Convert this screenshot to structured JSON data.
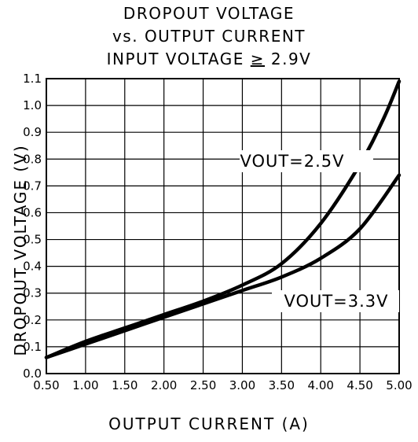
{
  "title_lines": [
    "DROPOUT VOLTAGE",
    "vs. OUTPUT CURRENT",
    "INPUT VOLTAGE ≥ 2.9V"
  ],
  "title_parts": {
    "line3_prefix": "INPUT VOLTAGE ",
    "line3_symbol": "≥",
    "line3_suffix": " 2.9V"
  },
  "chart_data": {
    "type": "line",
    "title": "DROPOUT VOLTAGE vs. OUTPUT CURRENT INPUT VOLTAGE ≥ 2.9V",
    "xlabel": "OUTPUT CURRENT (A)",
    "ylabel": "DROPOUT VOLTAGE (V)",
    "xlim": [
      0.5,
      5.0
    ],
    "ylim": [
      0.0,
      1.1
    ],
    "grid": true,
    "x_ticks": [
      "0.50",
      "1.00",
      "1.50",
      "2.00",
      "2.50",
      "3.00",
      "3.50",
      "4.00",
      "4.50",
      "5.00"
    ],
    "y_ticks": [
      "0.0",
      "0.1",
      "0.2",
      "0.3",
      "0.4",
      "0.5",
      "0.6",
      "0.7",
      "0.8",
      "0.9",
      "1.0",
      "1.1"
    ],
    "series": [
      {
        "name": "VOUT=2.5V",
        "x": [
          0.5,
          1.0,
          1.5,
          2.0,
          2.5,
          3.0,
          3.5,
          4.0,
          4.5,
          4.8,
          5.0
        ],
        "y": [
          0.06,
          0.12,
          0.17,
          0.22,
          0.27,
          0.33,
          0.41,
          0.56,
          0.78,
          0.95,
          1.09
        ]
      },
      {
        "name": "VOUT=3.3V",
        "x": [
          0.5,
          1.0,
          1.5,
          2.0,
          2.5,
          3.0,
          3.5,
          4.0,
          4.5,
          5.0
        ],
        "y": [
          0.06,
          0.11,
          0.16,
          0.21,
          0.26,
          0.31,
          0.36,
          0.43,
          0.54,
          0.74
        ]
      }
    ]
  }
}
